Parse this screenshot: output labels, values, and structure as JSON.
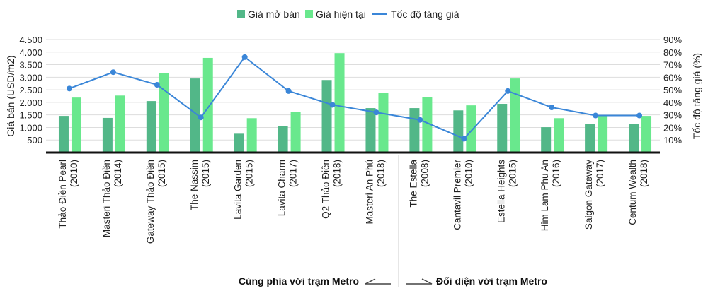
{
  "chart_data": {
    "type": "bar",
    "categories": [
      [
        "Thảo Điền Pearl",
        "(2010)"
      ],
      [
        "Masteri Thảo Điền",
        "(2014)"
      ],
      [
        "Gateway Thảo Điền",
        "(2015)"
      ],
      [
        "The Nassim",
        "(2015)"
      ],
      [
        "Lavita Garden",
        "(2015)"
      ],
      [
        "Lavita Charm",
        "(2017)"
      ],
      [
        "Q2 Thảo Điền",
        "(2018)"
      ],
      [
        "Masteri An Phú",
        "(2018)"
      ],
      [
        "The Estella",
        "(2008)"
      ],
      [
        "Cantavil Premier",
        "(2010)"
      ],
      [
        "Estella Heights",
        "(2015)"
      ],
      [
        "Him Lam Phu An",
        "(2016)"
      ],
      [
        "Saigon Gateway",
        "(2017)"
      ],
      [
        "Centum Wealth",
        "(2018)"
      ]
    ],
    "series": [
      {
        "name": "Giá mở bán",
        "type": "bar",
        "axis": "left",
        "color": "#52b788",
        "values": [
          1460,
          1380,
          2050,
          2950,
          750,
          1060,
          2890,
          1770,
          1770,
          1680,
          1940,
          1010,
          1150,
          1150
        ]
      },
      {
        "name": "Giá hiện tại",
        "type": "bar",
        "axis": "left",
        "color": "#69e88d",
        "values": [
          2190,
          2270,
          3150,
          3770,
          1370,
          1630,
          3960,
          2390,
          2220,
          1880,
          2950,
          1370,
          1460,
          1460
        ]
      },
      {
        "name": "Tốc độ tăng giá",
        "type": "line",
        "axis": "right",
        "color": "#3a86d8",
        "values": [
          51,
          64,
          54,
          28,
          76,
          49,
          38,
          32,
          26,
          11,
          49,
          36,
          29.5,
          29.5
        ]
      }
    ],
    "ylabel": "Giá bán (USD/m2)",
    "y2label": "Tốc độ tăng giá (%)",
    "ylim": [
      0,
      4500
    ],
    "y2lim": [
      0,
      90
    ],
    "yticks": [
      "500",
      "1.000",
      "1.500",
      "2.000",
      "2.500",
      "3.000",
      "3.500",
      "4.000",
      "4.500"
    ],
    "y2ticks": [
      "10%",
      "20%",
      "30%",
      "40%",
      "50%",
      "60%",
      "70%",
      "80%",
      "90%"
    ],
    "grid": true,
    "legend_position": "top-center",
    "annotations": {
      "left_group": "Cùng  phía với trạm Metro",
      "right_group": "Đối diện với trạm Metro"
    }
  }
}
